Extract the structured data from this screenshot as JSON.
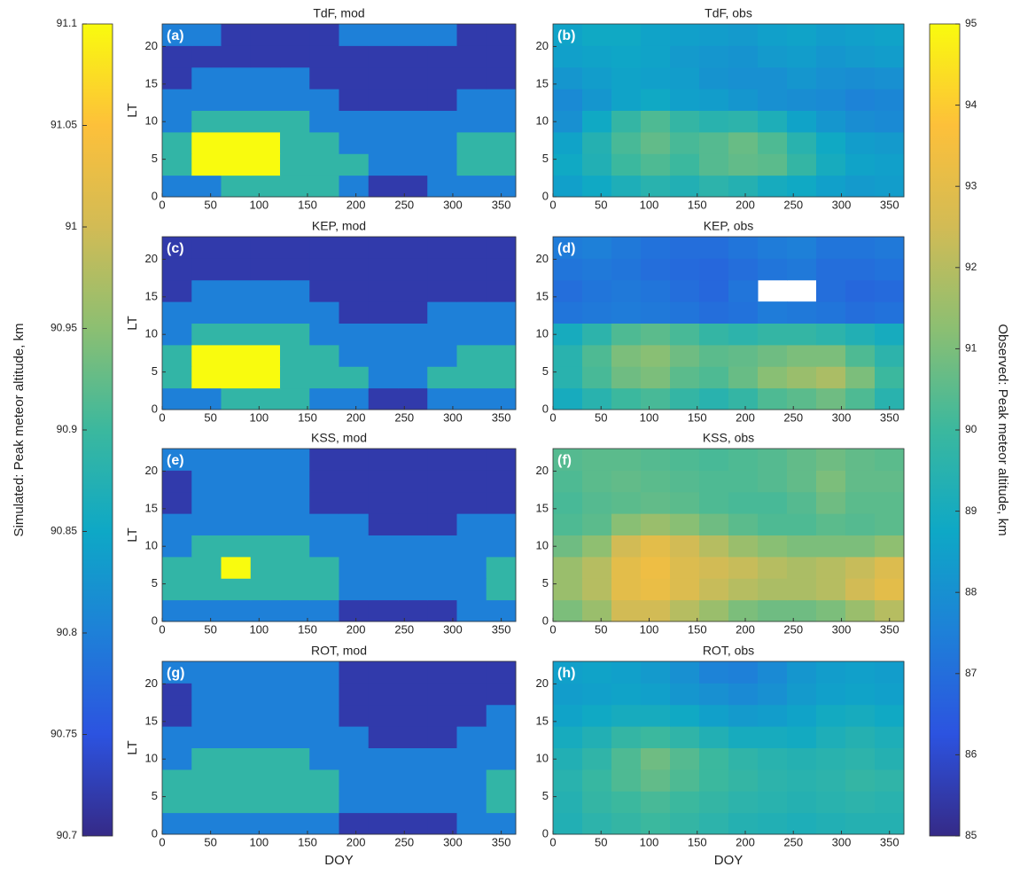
{
  "chart_data": [
    {
      "type": "colorbar",
      "side": "left",
      "label": "Simulated: Peak meteor altitude, km",
      "ylim": [
        90.7,
        91.1
      ],
      "yticks": [
        90.7,
        90.75,
        90.8,
        90.85,
        90.9,
        90.95,
        91,
        91.05,
        91.1
      ],
      "colormap": [
        "#352a87",
        "#2c53e0",
        "#1e80d8",
        "#0ea8c6",
        "#3bb89e",
        "#8cbf72",
        "#d2bb55",
        "#fdc03a",
        "#f9fb0e"
      ]
    },
    {
      "type": "colorbar",
      "side": "right",
      "label": "Observed: Peak meteor altitude, km",
      "ylim": [
        85,
        95
      ],
      "yticks": [
        85,
        86,
        87,
        88,
        89,
        90,
        91,
        92,
        93,
        94,
        95
      ],
      "colormap": [
        "#352a87",
        "#2c53e0",
        "#1e80d8",
        "#0ea8c6",
        "#3bb89e",
        "#8cbf72",
        "#d2bb55",
        "#fdc03a",
        "#f9fb0e"
      ]
    },
    {
      "type": "heatmap",
      "title": "TdF, mod",
      "panel_label": "(a)",
      "ylabel": "LT",
      "colorbar": "left",
      "xlim": [
        0,
        365
      ],
      "ylim": [
        0,
        23
      ],
      "xticks": [
        0,
        50,
        100,
        150,
        200,
        250,
        300,
        350
      ],
      "yticks": [
        0,
        5,
        10,
        15,
        20
      ],
      "values": [
        [
          90.8,
          90.8,
          90.89,
          90.89,
          90.89,
          90.89,
          90.8,
          90.72,
          90.72,
          90.8,
          90.8,
          90.8
        ],
        [
          90.89,
          91.1,
          91.1,
          91.1,
          90.89,
          90.89,
          90.89,
          90.8,
          90.8,
          90.8,
          90.89,
          90.89
        ],
        [
          90.89,
          91.1,
          91.1,
          91.1,
          90.89,
          90.89,
          90.8,
          90.8,
          90.8,
          90.8,
          90.89,
          90.89
        ],
        [
          90.8,
          90.89,
          90.89,
          90.89,
          90.89,
          90.8,
          90.8,
          90.8,
          90.8,
          90.8,
          90.8,
          90.8
        ],
        [
          90.8,
          90.8,
          90.8,
          90.8,
          90.8,
          90.8,
          90.72,
          90.72,
          90.72,
          90.72,
          90.8,
          90.8
        ],
        [
          90.72,
          90.8,
          90.8,
          90.8,
          90.8,
          90.72,
          90.72,
          90.72,
          90.72,
          90.72,
          90.72,
          90.72
        ],
        [
          90.72,
          90.72,
          90.72,
          90.72,
          90.72,
          90.72,
          90.72,
          90.72,
          90.72,
          90.72,
          90.72,
          90.72
        ],
        [
          90.8,
          90.8,
          90.72,
          90.72,
          90.72,
          90.72,
          90.8,
          90.8,
          90.8,
          90.8,
          90.72,
          90.72
        ]
      ]
    },
    {
      "type": "heatmap",
      "title": "TdF, obs",
      "panel_label": "(b)",
      "colorbar": "right",
      "xlim": [
        0,
        365
      ],
      "ylim": [
        0,
        23
      ],
      "xticks": [
        0,
        50,
        100,
        150,
        200,
        250,
        300,
        350
      ],
      "yticks": [
        0,
        5,
        10,
        15,
        20
      ],
      "values": [
        [
          88.5,
          88.8,
          89.2,
          89.5,
          89.3,
          89.6,
          89.4,
          89.0,
          88.8,
          88.5,
          88.3,
          88.4
        ],
        [
          88.8,
          89.3,
          90.0,
          90.3,
          90.0,
          90.4,
          90.6,
          90.5,
          89.8,
          89.0,
          88.6,
          88.5
        ],
        [
          88.6,
          89.4,
          90.2,
          90.6,
          90.2,
          90.4,
          90.7,
          90.3,
          89.5,
          88.8,
          88.4,
          88.3
        ],
        [
          88.0,
          88.8,
          89.8,
          90.3,
          89.8,
          89.5,
          89.6,
          89.2,
          88.6,
          88.2,
          87.9,
          87.8
        ],
        [
          87.8,
          88.2,
          88.6,
          88.8,
          88.5,
          88.4,
          88.2,
          88.0,
          87.9,
          87.8,
          87.6,
          87.7
        ],
        [
          88.2,
          88.4,
          88.6,
          88.5,
          88.4,
          88.1,
          88.0,
          88.0,
          88.2,
          88.0,
          87.9,
          88.0
        ],
        [
          88.5,
          88.6,
          88.7,
          88.6,
          88.3,
          88.2,
          88.1,
          88.3,
          88.4,
          88.2,
          88.3,
          88.4
        ],
        [
          88.6,
          88.8,
          88.8,
          88.6,
          88.5,
          88.4,
          88.3,
          88.5,
          88.6,
          88.4,
          88.5,
          88.6
        ]
      ]
    },
    {
      "type": "heatmap",
      "title": "KEP, mod",
      "panel_label": "(c)",
      "ylabel": "LT",
      "colorbar": "left",
      "xlim": [
        0,
        365
      ],
      "ylim": [
        0,
        23
      ],
      "xticks": [
        0,
        50,
        100,
        150,
        200,
        250,
        300,
        350
      ],
      "yticks": [
        0,
        5,
        10,
        15,
        20
      ],
      "values": [
        [
          90.8,
          90.8,
          90.89,
          90.89,
          90.89,
          90.8,
          90.8,
          90.72,
          90.72,
          90.8,
          90.8,
          90.8
        ],
        [
          90.89,
          91.1,
          91.1,
          91.1,
          90.89,
          90.89,
          90.89,
          90.8,
          90.8,
          90.89,
          90.89,
          90.89
        ],
        [
          90.89,
          91.1,
          91.1,
          91.1,
          90.89,
          90.89,
          90.8,
          90.8,
          90.8,
          90.8,
          90.89,
          90.89
        ],
        [
          90.8,
          90.89,
          90.89,
          90.89,
          90.89,
          90.8,
          90.8,
          90.8,
          90.8,
          90.8,
          90.8,
          90.8
        ],
        [
          90.8,
          90.8,
          90.8,
          90.8,
          90.8,
          90.8,
          90.72,
          90.72,
          90.72,
          90.8,
          90.8,
          90.8
        ],
        [
          90.72,
          90.8,
          90.8,
          90.8,
          90.8,
          90.72,
          90.72,
          90.72,
          90.72,
          90.72,
          90.72,
          90.72
        ],
        [
          90.72,
          90.72,
          90.72,
          90.72,
          90.72,
          90.72,
          90.72,
          90.72,
          90.72,
          90.72,
          90.72,
          90.72
        ],
        [
          90.72,
          90.72,
          90.72,
          90.72,
          90.72,
          90.72,
          90.72,
          90.72,
          90.72,
          90.72,
          90.72,
          90.72
        ]
      ]
    },
    {
      "type": "heatmap",
      "title": "KEP, obs",
      "panel_label": "(d)",
      "colorbar": "right",
      "xlim": [
        0,
        365
      ],
      "ylim": [
        0,
        23
      ],
      "xticks": [
        0,
        50,
        100,
        150,
        200,
        250,
        300,
        350
      ],
      "yticks": [
        0,
        5,
        10,
        15,
        20
      ],
      "values": [
        [
          89.0,
          89.5,
          90.0,
          90.2,
          89.8,
          89.5,
          89.8,
          90.3,
          90.5,
          90.8,
          90.3,
          89.5
        ],
        [
          89.5,
          90.2,
          90.8,
          91.0,
          90.5,
          90.3,
          90.7,
          91.2,
          91.5,
          91.8,
          91.0,
          90.0
        ],
        [
          89.5,
          90.3,
          91.0,
          91.2,
          90.8,
          90.5,
          90.6,
          90.8,
          91.0,
          91.0,
          90.3,
          89.6
        ],
        [
          89.0,
          89.6,
          90.3,
          90.5,
          90.2,
          89.8,
          89.6,
          89.8,
          89.8,
          89.6,
          89.3,
          89.0
        ],
        [
          87.2,
          87.3,
          87.4,
          87.3,
          87.2,
          87.0,
          87.1,
          87.4,
          87.3,
          87.2,
          87.0,
          87.1
        ],
        [
          87.0,
          87.2,
          87.3,
          87.2,
          87.0,
          86.8,
          87.2,
          null,
          null,
          87.0,
          86.8,
          86.9
        ],
        [
          87.2,
          87.3,
          87.2,
          87.0,
          86.9,
          86.8,
          87.0,
          87.2,
          87.3,
          87.0,
          87.0,
          87.1
        ],
        [
          87.4,
          87.5,
          87.3,
          87.1,
          87.0,
          87.0,
          87.2,
          87.4,
          87.5,
          87.2,
          87.2,
          87.3
        ]
      ]
    },
    {
      "type": "heatmap",
      "title": "KSS, mod",
      "panel_label": "(e)",
      "ylabel": "LT",
      "colorbar": "left",
      "xlim": [
        0,
        365
      ],
      "ylim": [
        0,
        23
      ],
      "xticks": [
        0,
        50,
        100,
        150,
        200,
        250,
        300,
        350
      ],
      "yticks": [
        0,
        5,
        10,
        15,
        20
      ],
      "values": [
        [
          90.8,
          90.8,
          90.8,
          90.8,
          90.8,
          90.8,
          90.72,
          90.72,
          90.72,
          90.72,
          90.8,
          90.8
        ],
        [
          90.89,
          90.89,
          90.89,
          90.89,
          90.89,
          90.89,
          90.8,
          90.8,
          90.8,
          90.8,
          90.8,
          90.89
        ],
        [
          90.89,
          90.89,
          91.1,
          90.89,
          90.89,
          90.89,
          90.8,
          90.8,
          90.8,
          90.8,
          90.8,
          90.89
        ],
        [
          90.8,
          90.89,
          90.89,
          90.89,
          90.89,
          90.8,
          90.8,
          90.8,
          90.8,
          90.8,
          90.8,
          90.8
        ],
        [
          90.8,
          90.8,
          90.8,
          90.8,
          90.8,
          90.8,
          90.8,
          90.72,
          90.72,
          90.72,
          90.8,
          90.8
        ],
        [
          90.72,
          90.8,
          90.8,
          90.8,
          90.8,
          90.72,
          90.72,
          90.72,
          90.72,
          90.72,
          90.72,
          90.72
        ],
        [
          90.72,
          90.8,
          90.8,
          90.8,
          90.8,
          90.72,
          90.72,
          90.72,
          90.72,
          90.72,
          90.72,
          90.72
        ],
        [
          90.8,
          90.8,
          90.8,
          90.8,
          90.8,
          90.72,
          90.72,
          90.72,
          90.72,
          90.72,
          90.72,
          90.72
        ]
      ]
    },
    {
      "type": "heatmap",
      "title": "KSS, obs",
      "panel_label": "(f)",
      "colorbar": "right",
      "xlim": [
        0,
        365
      ],
      "ylim": [
        0,
        23
      ],
      "xticks": [
        0,
        50,
        100,
        150,
        200,
        250,
        300,
        350
      ],
      "yticks": [
        0,
        5,
        10,
        15,
        20
      ],
      "values": [
        [
          91.0,
          91.5,
          92.5,
          92.5,
          92.0,
          91.5,
          91.0,
          90.8,
          90.8,
          91.0,
          91.5,
          92.0
        ],
        [
          91.5,
          92.0,
          93.0,
          93.2,
          92.8,
          92.3,
          92.0,
          91.8,
          91.8,
          92.0,
          92.5,
          93.0
        ],
        [
          91.5,
          92.0,
          93.0,
          93.3,
          92.8,
          92.5,
          92.3,
          92.0,
          91.8,
          92.0,
          92.3,
          92.8
        ],
        [
          90.8,
          91.3,
          92.5,
          93.0,
          92.5,
          92.0,
          91.5,
          91.2,
          91.0,
          91.0,
          91.0,
          91.3
        ],
        [
          90.3,
          90.5,
          91.2,
          91.5,
          91.2,
          90.8,
          90.5,
          90.3,
          90.3,
          90.5,
          90.4,
          90.5
        ],
        [
          90.2,
          90.4,
          90.5,
          90.6,
          90.5,
          90.3,
          90.2,
          90.2,
          90.4,
          90.8,
          90.5,
          90.5
        ],
        [
          90.3,
          90.5,
          90.6,
          90.5,
          90.4,
          90.3,
          90.3,
          90.4,
          90.6,
          91.0,
          90.6,
          90.6
        ],
        [
          90.4,
          90.5,
          90.5,
          90.4,
          90.3,
          90.2,
          90.3,
          90.4,
          90.6,
          90.8,
          90.6,
          90.5
        ]
      ]
    },
    {
      "type": "heatmap",
      "title": "ROT, mod",
      "panel_label": "(g)",
      "ylabel": "LT",
      "xlabel": "DOY",
      "colorbar": "left",
      "xlim": [
        0,
        365
      ],
      "ylim": [
        0,
        23
      ],
      "xticks": [
        0,
        50,
        100,
        150,
        200,
        250,
        300,
        350
      ],
      "yticks": [
        0,
        5,
        10,
        15,
        20
      ],
      "values": [
        [
          90.8,
          90.8,
          90.8,
          90.8,
          90.8,
          90.8,
          90.72,
          90.72,
          90.72,
          90.72,
          90.8,
          90.8
        ],
        [
          90.89,
          90.89,
          90.89,
          90.89,
          90.89,
          90.89,
          90.8,
          90.8,
          90.8,
          90.8,
          90.8,
          90.89
        ],
        [
          90.89,
          90.89,
          90.89,
          90.89,
          90.89,
          90.89,
          90.8,
          90.8,
          90.8,
          90.8,
          90.8,
          90.89
        ],
        [
          90.8,
          90.89,
          90.89,
          90.89,
          90.89,
          90.8,
          90.8,
          90.8,
          90.8,
          90.8,
          90.8,
          90.8
        ],
        [
          90.8,
          90.8,
          90.8,
          90.8,
          90.8,
          90.8,
          90.8,
          90.72,
          90.72,
          90.72,
          90.8,
          90.8
        ],
        [
          90.72,
          90.8,
          90.8,
          90.8,
          90.8,
          90.8,
          90.72,
          90.72,
          90.72,
          90.72,
          90.72,
          90.8
        ],
        [
          90.72,
          90.8,
          90.8,
          90.8,
          90.8,
          90.8,
          90.72,
          90.72,
          90.72,
          90.72,
          90.72,
          90.72
        ],
        [
          90.8,
          90.8,
          90.8,
          90.8,
          90.8,
          90.8,
          90.72,
          90.72,
          90.72,
          90.72,
          90.72,
          90.72
        ]
      ]
    },
    {
      "type": "heatmap",
      "title": "ROT, obs",
      "panel_label": "(h)",
      "xlabel": "DOY",
      "colorbar": "right",
      "xlim": [
        0,
        365
      ],
      "ylim": [
        0,
        23
      ],
      "xticks": [
        0,
        50,
        100,
        150,
        200,
        250,
        300,
        350
      ],
      "yticks": [
        0,
        5,
        10,
        15,
        20
      ],
      "values": [
        [
          89.3,
          89.6,
          89.8,
          90.0,
          89.8,
          89.6,
          89.4,
          89.3,
          89.2,
          89.3,
          89.4,
          89.4
        ],
        [
          89.4,
          89.8,
          90.0,
          90.2,
          90.0,
          89.8,
          89.6,
          89.5,
          89.4,
          89.5,
          89.6,
          89.5
        ],
        [
          89.5,
          89.9,
          90.3,
          90.6,
          90.3,
          90.0,
          89.8,
          89.6,
          89.5,
          89.6,
          89.8,
          89.7
        ],
        [
          89.3,
          89.7,
          90.3,
          90.8,
          90.4,
          90.0,
          89.7,
          89.5,
          89.4,
          89.5,
          89.6,
          89.4
        ],
        [
          89.0,
          89.3,
          89.8,
          90.0,
          89.7,
          89.3,
          89.0,
          89.0,
          88.9,
          89.2,
          89.4,
          89.2
        ],
        [
          88.6,
          88.8,
          89.0,
          89.0,
          88.8,
          88.5,
          88.3,
          88.4,
          88.6,
          88.9,
          89.0,
          88.8
        ],
        [
          88.4,
          88.5,
          88.6,
          88.5,
          88.2,
          88.0,
          87.8,
          88.0,
          88.3,
          88.5,
          88.6,
          88.5
        ],
        [
          88.5,
          88.6,
          88.5,
          88.3,
          88.0,
          87.6,
          87.5,
          87.8,
          88.2,
          88.4,
          88.5,
          88.4
        ]
      ]
    }
  ]
}
